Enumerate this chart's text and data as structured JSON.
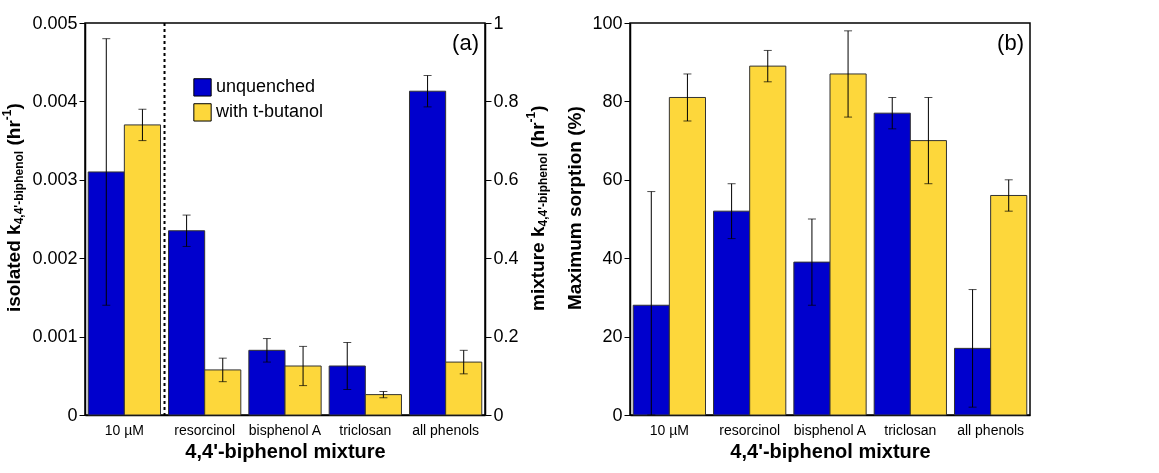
{
  "chart_data": [
    {
      "type": "bar",
      "categories": [
        "10 µM",
        "resorcinol",
        "bisphenol A",
        "triclosan",
        "all phenols"
      ],
      "xlabel": "4,4'-biphenol mixture",
      "ylabel": "isolated k$_{4,4'-biphenol}$ (hr$^{-1}$)",
      "y2label": "mixture k$_{4,4'-biphenol}$ (hr$^{-1}$)",
      "ylim": [
        0,
        0.005
      ],
      "yticks": [
        0,
        0.001,
        0.002,
        0.003,
        0.004,
        0.005
      ],
      "y2lim": [
        0,
        1
      ],
      "y2ticks": [
        0,
        0.2,
        0.4,
        0.6,
        0.8,
        1
      ],
      "legend": "top",
      "annotations": [
        "(a)"
      ],
      "series": [
        {
          "name": "unquenched",
          "color": "#0000cd",
          "values": [
            0.0031,
            null,
            null,
            null,
            null
          ],
          "errors": [
            [
              0.0014,
              0.0048
            ],
            null,
            null,
            null,
            null
          ]
        },
        {
          "name": "with t-butanol",
          "color": "#fdd73b",
          "values": [
            0.0037,
            null,
            null,
            null,
            null
          ],
          "errors": [
            0.0002,
            null,
            null,
            null,
            null
          ]
        },
        {
          "color": "#0000cd",
          "axis": "y2",
          "values": [
            null,
            0.47,
            0.165,
            0.125,
            0.826
          ],
          "errors": [
            null,
            0.04,
            0.03,
            0.06,
            0.04
          ]
        },
        {
          "color": "#fdd73b",
          "axis": "y2",
          "values": [
            null,
            0.115,
            0.125,
            0.052,
            0.135
          ],
          "errors": [
            null,
            0.03,
            0.05,
            0.008,
            0.03
          ]
        }
      ]
    },
    {
      "type": "bar",
      "categories": [
        "10 µM",
        "resorcinol",
        "bisphenol A",
        "triclosan",
        "all phenols"
      ],
      "xlabel": "4,4'-biphenol mixture",
      "ylabel": "Maximum sorption (%)",
      "ylim": [
        0,
        100
      ],
      "yticks": [
        0,
        20,
        40,
        60,
        80,
        100
      ],
      "annotations": [
        "(b)"
      ],
      "series": [
        {
          "color": "#0000cd",
          "values": [
            28,
            52,
            39,
            77,
            17
          ],
          "errors": [
            [
              0,
              57
            ],
            [
              45,
              59
            ],
            [
              28,
              50
            ],
            [
              73,
              81
            ],
            [
              2,
              32
            ]
          ]
        },
        {
          "color": "#fdd73b",
          "values": [
            81,
            89,
            87,
            70,
            56
          ],
          "errors": [
            [
              75,
              87
            ],
            [
              85,
              93
            ],
            [
              76,
              98
            ],
            [
              59,
              81
            ],
            [
              52,
              60
            ]
          ]
        }
      ]
    }
  ]
}
